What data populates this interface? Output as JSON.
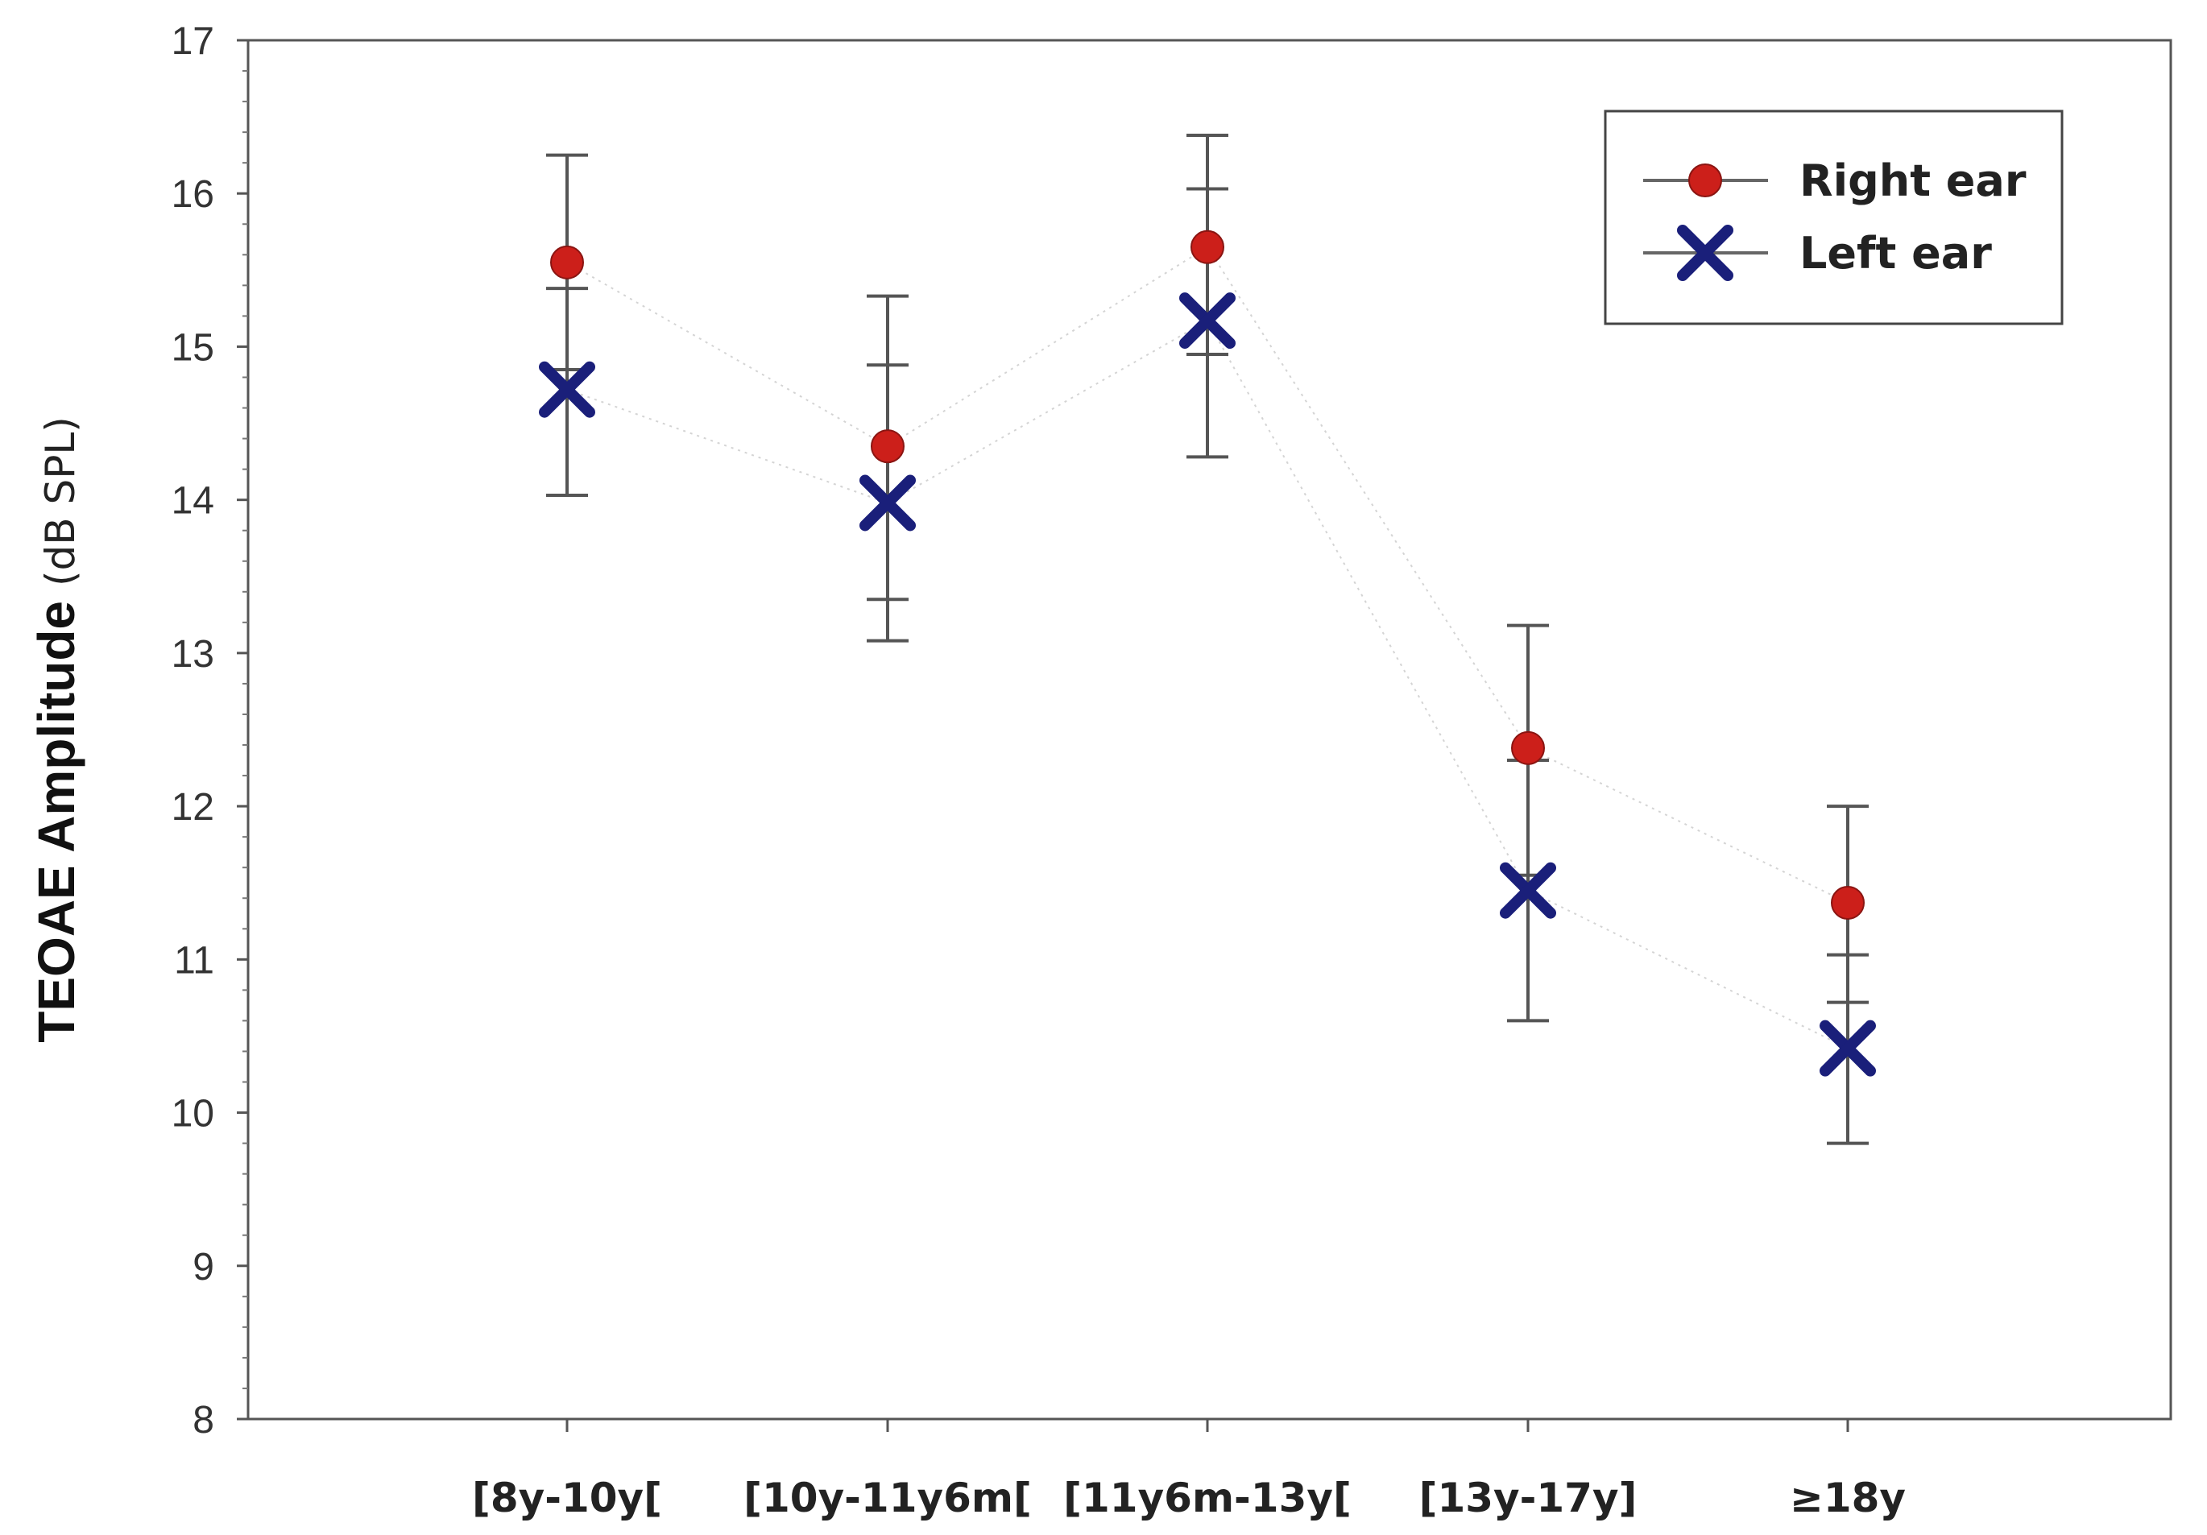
{
  "chart_data": {
    "type": "scatter",
    "categories": [
      "[8y-10y[",
      "[10y-11y6m[",
      "[11y6m-13y[",
      "[13y-17y]",
      "≥18y"
    ],
    "ylabel": "TEOAE Amplitude",
    "ylabel_unit": "(dB SPL)",
    "xlabel": "",
    "ylim": [
      8,
      17
    ],
    "yticks": [
      8,
      9,
      10,
      11,
      12,
      13,
      14,
      15,
      16,
      17
    ],
    "y_minor_step": 0.2,
    "grid": false,
    "legend_position": "top-right",
    "series": [
      {
        "name": "Right ear",
        "marker": "circle",
        "color": "#cc1f1a",
        "values": [
          15.55,
          14.35,
          15.65,
          12.38,
          11.37
        ],
        "err_low": [
          14.85,
          13.35,
          14.95,
          11.55,
          10.72
        ],
        "err_high": [
          16.25,
          15.33,
          16.38,
          13.18,
          12.0
        ]
      },
      {
        "name": "Left ear",
        "marker": "x",
        "color": "#1a1f7a",
        "values": [
          14.72,
          13.98,
          15.17,
          11.45,
          10.42
        ],
        "err_low": [
          14.03,
          13.08,
          14.28,
          10.6,
          9.8
        ],
        "err_high": [
          15.38,
          14.88,
          16.03,
          12.3,
          11.03
        ]
      }
    ]
  }
}
